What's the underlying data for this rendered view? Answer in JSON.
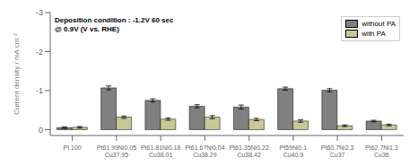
{
  "chart_data": {
    "type": "bar",
    "categories": [
      "Pt 100",
      "Pt61.99Ni0.05\nCu37.95",
      "Pt61.81Ni0.18\nCu38.01",
      "Pt61.67Ni0.04\nCu38.29",
      "Pt61.35Ni0.22\nCu38.42",
      "Pt59Ni0.1\nCu40.9",
      "Pt60.7Ni2.3\nCu37",
      "Pt62.7Ni1.3\nCu36"
    ],
    "series": [
      {
        "name": "without PA",
        "color": "#808080",
        "values": [
          -0.05,
          -1.07,
          -0.75,
          -0.6,
          -0.58,
          -1.05,
          -1.01,
          -0.22
        ],
        "errors": [
          0.02,
          0.05,
          0.04,
          0.04,
          0.05,
          0.04,
          0.04,
          0.02
        ]
      },
      {
        "name": "with PA",
        "color": "#c8c896",
        "values": [
          -0.06,
          -0.32,
          -0.27,
          -0.32,
          -0.26,
          -0.22,
          -0.1,
          -0.12
        ],
        "errors": [
          0.02,
          0.03,
          0.03,
          0.04,
          0.03,
          0.03,
          0.02,
          0.02
        ]
      }
    ],
    "ylabel": "Current density / mA cm⁻²",
    "ylim": [
      0.15,
      -3.0
    ],
    "yticks": [
      0,
      -1,
      -2,
      -3
    ],
    "annotations": [
      "Deposition condition : -1.2V 60 sec",
      "@ 0.9V (V vs. RHE)"
    ],
    "legend": "upper right",
    "grid": false
  }
}
